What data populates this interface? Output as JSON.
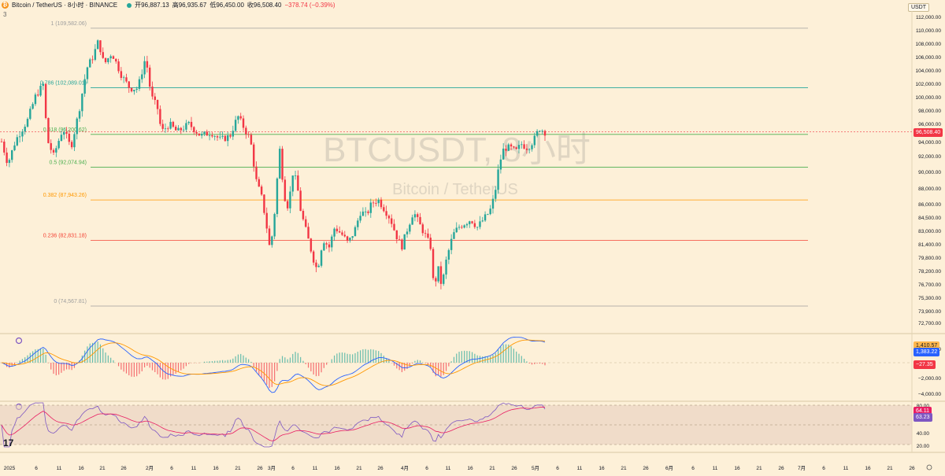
{
  "header": {
    "symbol_full": "Bitcoin / TetherUS · 8小时 · BINANCE",
    "open_label": "开",
    "open": "96,887.13",
    "high_label": "高",
    "high": "96,935.67",
    "low_label": "低",
    "low": "96,450.00",
    "close_label": "收",
    "close": "96,508.40",
    "change": "−378.74 (−0.39%)",
    "indicator_count": "3"
  },
  "currency": "USDT",
  "watermark": {
    "main": "BTCUSDT, 8小时",
    "sub": "Bitcoin / TetherUS"
  },
  "price_badge": "96,508.40",
  "macd_badges": [
    "1,410.57",
    "1,383.22",
    "−27.35"
  ],
  "rsi_badges": [
    "64.11",
    "63.23"
  ],
  "colors": {
    "up": "#26a69a",
    "down": "#f23645",
    "bg": "#fdf0d8",
    "macd": "#2962ff",
    "signal": "#ff9800",
    "rsi": "#7e57c2",
    "rsi_ma": "#e91e63"
  },
  "chart_data": {
    "type": "candlestick",
    "interval": "8h",
    "price_axis": {
      "range": [
        71500,
        113000
      ],
      "ticks": [
        "112,000.00",
        "110,000.00",
        "108,000.00",
        "106,000.00",
        "104,000.00",
        "102,000.00",
        "100,000.00",
        "98,000.00",
        "96,000.00",
        "94,000.00",
        "92,000.00",
        "90,000.00",
        "88,000.00",
        "86,000.00",
        "84,500.00",
        "83,000.00",
        "81,400.00",
        "79,800.00",
        "78,200.00",
        "76,700.00",
        "75,300.00",
        "73,900.00",
        "72,700.00"
      ]
    },
    "fib_levels": [
      {
        "label": "1 (109,582.06)",
        "value": 109582.06,
        "color": "#9e9e9e"
      },
      {
        "label": "0.786 (102,089.01)",
        "value": 102089.01,
        "color": "#26a69a"
      },
      {
        "label": "0.618 (96,200.62)",
        "value": 96200.62,
        "color": "#4caf50"
      },
      {
        "label": "0.5 (92,074.94)",
        "value": 92074.94,
        "color": "#4caf50"
      },
      {
        "label": "0.382 (87,943.26)",
        "value": 87943.26,
        "color": "#ff9800"
      },
      {
        "label": "0.236 (82,831.18)",
        "value": 82831.18,
        "color": "#f44336"
      },
      {
        "label": "0 (74,567.81)",
        "value": 74567.81,
        "color": "#9e9e9e"
      }
    ],
    "macd_axis_ticks": [
      "2,000.00",
      "−2,000.00",
      "−4,000.00"
    ],
    "rsi_axis_ticks": [
      "80.00",
      "40.00",
      "20.00"
    ],
    "x_labels": [
      "2025",
      "6",
      "11",
      "16",
      "21",
      "26",
      "2月",
      "6",
      "11",
      "16",
      "21",
      "26",
      "3月",
      "6",
      "11",
      "16",
      "21",
      "26",
      "4月",
      "6",
      "11",
      "16",
      "21",
      "26",
      "5月",
      "6",
      "11",
      "16",
      "21",
      "26",
      "6月",
      "6",
      "11",
      "16",
      "21",
      "26",
      "7月",
      "6",
      "11",
      "16",
      "21",
      "26"
    ],
    "x_label_positions": [
      12,
      46,
      75,
      103,
      130,
      157,
      190,
      218,
      246,
      274,
      302,
      330,
      345,
      372,
      400,
      428,
      456,
      483,
      514,
      542,
      569,
      597,
      625,
      653,
      680,
      708,
      736,
      764,
      792,
      820,
      850,
      880,
      908,
      936,
      964,
      992,
      1018,
      1046,
      1074,
      1102,
      1130,
      1158
    ],
    "price_anchors": [
      [
        0,
        96000
      ],
      [
        10,
        92500
      ],
      [
        20,
        95500
      ],
      [
        35,
        98000
      ],
      [
        45,
        101000
      ],
      [
        55,
        102500
      ],
      [
        60,
        95500
      ],
      [
        68,
        93500
      ],
      [
        80,
        97000
      ],
      [
        90,
        94500
      ],
      [
        100,
        99000
      ],
      [
        110,
        104500
      ],
      [
        118,
        106000
      ],
      [
        125,
        108000
      ],
      [
        132,
        105000
      ],
      [
        142,
        106500
      ],
      [
        155,
        103500
      ],
      [
        165,
        102000
      ],
      [
        175,
        102000
      ],
      [
        185,
        106000
      ],
      [
        192,
        101000
      ],
      [
        200,
        99500
      ],
      [
        205,
        96500
      ],
      [
        215,
        97500
      ],
      [
        225,
        96500
      ],
      [
        240,
        97500
      ],
      [
        255,
        96000
      ],
      [
        268,
        96500
      ],
      [
        280,
        95500
      ],
      [
        292,
        96000
      ],
      [
        302,
        98500
      ],
      [
        310,
        97000
      ],
      [
        318,
        95500
      ],
      [
        325,
        90500
      ],
      [
        333,
        88000
      ],
      [
        338,
        85000
      ],
      [
        343,
        81500
      ],
      [
        348,
        85500
      ],
      [
        355,
        94500
      ],
      [
        361,
        88500
      ],
      [
        366,
        87000
      ],
      [
        372,
        91500
      ],
      [
        377,
        90000
      ],
      [
        382,
        86500
      ],
      [
        390,
        83500
      ],
      [
        398,
        80500
      ],
      [
        403,
        79000
      ],
      [
        410,
        83000
      ],
      [
        418,
        82000
      ],
      [
        425,
        84500
      ],
      [
        435,
        83500
      ],
      [
        442,
        82500
      ],
      [
        450,
        84000
      ],
      [
        458,
        86500
      ],
      [
        465,
        86000
      ],
      [
        472,
        87500
      ],
      [
        480,
        88000
      ],
      [
        490,
        86500
      ],
      [
        496,
        85500
      ],
      [
        503,
        83500
      ],
      [
        510,
        82000
      ],
      [
        518,
        84500
      ],
      [
        525,
        86500
      ],
      [
        532,
        85000
      ],
      [
        540,
        83500
      ],
      [
        547,
        82000
      ],
      [
        551,
        76500
      ],
      [
        556,
        79500
      ],
      [
        561,
        77000
      ],
      [
        567,
        80500
      ],
      [
        575,
        83500
      ],
      [
        582,
        84500
      ],
      [
        590,
        85000
      ],
      [
        598,
        85500
      ],
      [
        606,
        84500
      ],
      [
        614,
        85500
      ],
      [
        622,
        86500
      ],
      [
        628,
        88500
      ],
      [
        634,
        92500
      ],
      [
        640,
        94500
      ],
      [
        648,
        94500
      ],
      [
        655,
        94000
      ],
      [
        662,
        95000
      ],
      [
        670,
        94500
      ],
      [
        678,
        95500
      ],
      [
        685,
        97000
      ],
      [
        692,
        96500
      ]
    ],
    "candle_count": 210,
    "last_close": 96508.4
  }
}
